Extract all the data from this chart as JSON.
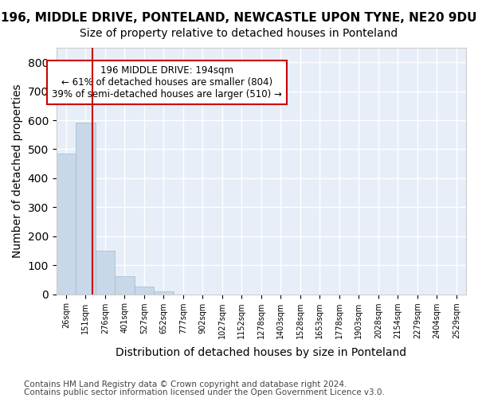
{
  "title1": "196, MIDDLE DRIVE, PONTELAND, NEWCASTLE UPON TYNE, NE20 9DU",
  "title2": "Size of property relative to detached houses in Ponteland",
  "xlabel": "Distribution of detached houses by size in Ponteland",
  "ylabel": "Number of detached properties",
  "footer1": "Contains HM Land Registry data © Crown copyright and database right 2024.",
  "footer2": "Contains public sector information licensed under the Open Government Licence v3.0.",
  "bin_labels": [
    "26sqm",
    "151sqm",
    "276sqm",
    "401sqm",
    "527sqm",
    "652sqm",
    "777sqm",
    "902sqm",
    "1027sqm",
    "1152sqm",
    "1278sqm",
    "1403sqm",
    "1528sqm",
    "1653sqm",
    "1778sqm",
    "1903sqm",
    "2028sqm",
    "2154sqm",
    "2279sqm",
    "2404sqm",
    "2529sqm"
  ],
  "bar_values": [
    484,
    591,
    150,
    62,
    25,
    10,
    0,
    0,
    0,
    0,
    0,
    0,
    0,
    0,
    0,
    0,
    0,
    0,
    0,
    0,
    0
  ],
  "bar_color": "#c8d8e8",
  "bar_edge_color": "#a0b8d0",
  "background_color": "#e8eef8",
  "grid_color": "#ffffff",
  "vline_x": 1.35,
  "vline_color": "#cc0000",
  "annotation_text": "196 MIDDLE DRIVE: 194sqm\n← 61% of detached houses are smaller (804)\n39% of semi-detached houses are larger (510) →",
  "annotation_box_color": "#ffffff",
  "annotation_box_edge": "#cc0000",
  "ylim": [
    0,
    850
  ],
  "yticks": [
    0,
    100,
    200,
    300,
    400,
    500,
    600,
    700,
    800
  ],
  "title1_fontsize": 11,
  "title2_fontsize": 10,
  "xlabel_fontsize": 10,
  "ylabel_fontsize": 10,
  "annotation_fontsize": 8.5,
  "footer_fontsize": 7.5
}
